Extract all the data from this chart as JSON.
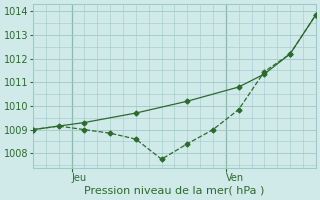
{
  "line1_x": [
    0,
    2,
    4,
    6,
    8,
    9,
    10,
    11
  ],
  "line1_y": [
    1009.0,
    1009.3,
    1009.7,
    1010.2,
    1010.8,
    1011.35,
    1012.2,
    1013.85
  ],
  "line2_x": [
    0,
    1,
    2,
    3,
    4,
    5,
    6,
    7,
    8,
    9,
    10,
    11
  ],
  "line2_y": [
    1009.0,
    1009.15,
    1009.0,
    1008.85,
    1008.6,
    1007.75,
    1008.4,
    1009.0,
    1009.85,
    1011.45,
    1012.2,
    1013.85
  ],
  "line_color": "#2d6a2d",
  "bg_color": "#d0eaea",
  "grid_color": "#a0c8c8",
  "ylim": [
    1007.4,
    1014.3
  ],
  "yticks": [
    1008,
    1009,
    1010,
    1011,
    1012,
    1013,
    1014
  ],
  "xlim": [
    0,
    11
  ],
  "jeu_x": 1.5,
  "ven_x": 7.5,
  "xtick_positions": [
    1.5,
    7.5
  ],
  "xtick_labels": [
    "Jeu",
    "Ven"
  ],
  "xlabel": "Pression niveau de la mer( hPa )",
  "vline_jeu": 1.5,
  "vline_ven": 7.5,
  "xlabel_fontsize": 8,
  "ytick_fontsize": 7,
  "xtick_fontsize": 7
}
